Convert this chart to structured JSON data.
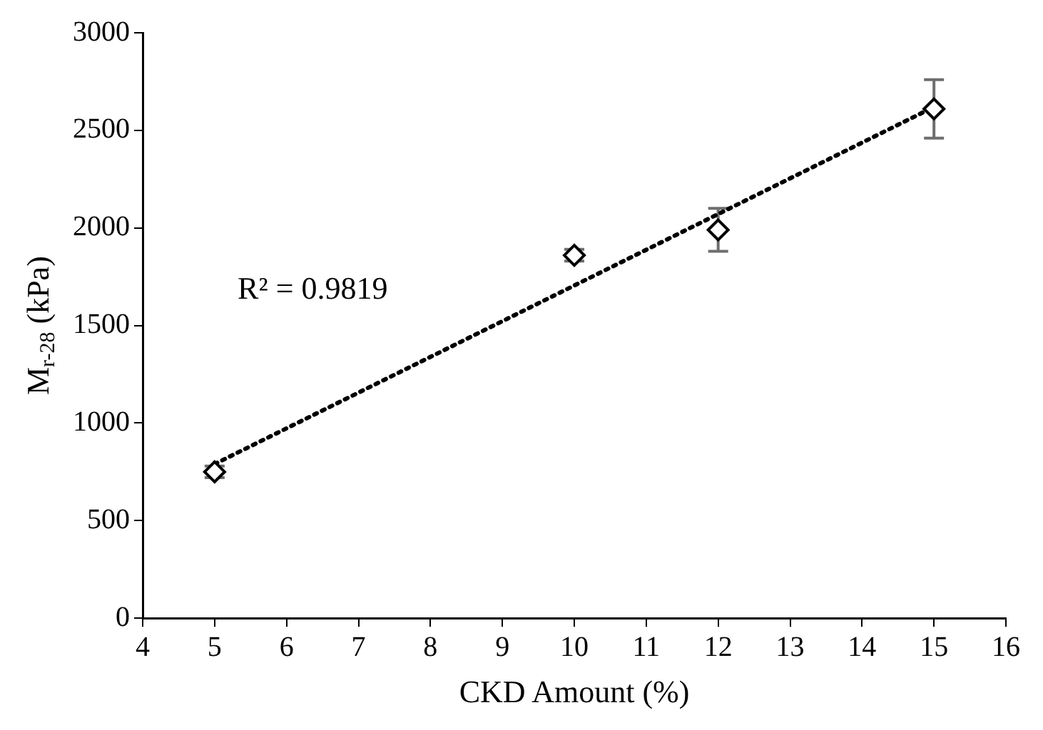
{
  "chart_data": {
    "type": "scatter",
    "xlabel": "CKD Amount (%)",
    "ylabel": "M$_{r-28}$ (kPa)",
    "xlim": [
      4,
      16
    ],
    "xticks": [
      4,
      5,
      6,
      7,
      8,
      9,
      10,
      11,
      12,
      13,
      14,
      15,
      16
    ],
    "ylim": [
      0,
      3000
    ],
    "yticks": [
      0,
      500,
      1000,
      1500,
      2000,
      2500,
      3000
    ],
    "grid": false,
    "legend": false,
    "annotations": [
      "R² = 0.9819"
    ],
    "series": [
      {
        "type": "scatter",
        "color": "#000000",
        "marker": "diamond",
        "x": [
          5,
          10,
          12,
          15
        ],
        "values": [
          750,
          1860,
          1990,
          2610
        ],
        "errors": [
          30,
          30,
          110,
          150
        ]
      },
      {
        "type": "line",
        "color": "#000000",
        "marker": "none",
        "line_style": "dotted",
        "x": [
          5,
          15
        ],
        "values": [
          790,
          2620
        ]
      }
    ]
  }
}
